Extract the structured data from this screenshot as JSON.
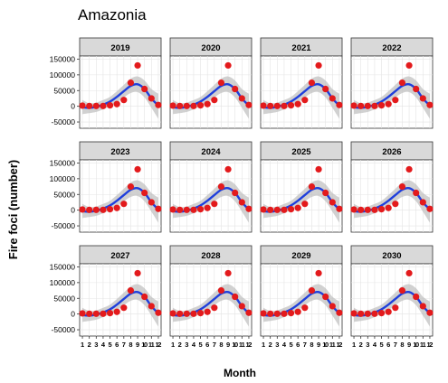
{
  "chart_data": {
    "type": "line",
    "title": "Amazonia",
    "xlabel": "Month",
    "ylabel": "Fire foci (number)",
    "x": [
      1,
      2,
      3,
      4,
      5,
      6,
      7,
      8,
      9,
      10,
      11,
      12
    ],
    "x_tick_labels": [
      "1",
      "2",
      "3",
      "4",
      "5",
      "6",
      "7",
      "8",
      "9",
      "10",
      "11",
      "12"
    ],
    "ylim": [
      -70000,
      160000
    ],
    "y_ticks": [
      150000,
      100000,
      50000,
      0,
      -50000
    ],
    "y_tick_labels": [
      "150000",
      "100000",
      "50000",
      "0",
      "-50000"
    ],
    "grid": true,
    "legend": "none",
    "facets": [
      "2019",
      "2020",
      "2021",
      "2022",
      "2023",
      "2024",
      "2025",
      "2026",
      "2027",
      "2028",
      "2029",
      "2030"
    ],
    "facet_layout": {
      "rows": 3,
      "cols": 4
    },
    "series": [
      {
        "kind": "observed-points",
        "color": "#e31a1c",
        "values": [
          2000,
          1000,
          1000,
          1000,
          3000,
          7000,
          20000,
          75000,
          130000,
          55000,
          25000,
          4000
        ]
      },
      {
        "kind": "fitted-curve",
        "color": "#1f3fdc",
        "values": [
          -3000,
          -5000,
          -2000,
          5000,
          15000,
          30000,
          48000,
          65000,
          70000,
          55000,
          25000,
          2000
        ]
      },
      {
        "kind": "confidence-band",
        "color": "#bdbdbd",
        "lower": [
          -25000,
          -22000,
          -18000,
          -10000,
          0,
          12000,
          28000,
          42000,
          45000,
          28000,
          -5000,
          -40000
        ],
        "upper": [
          20000,
          10000,
          12000,
          20000,
          30000,
          48000,
          68000,
          88000,
          95000,
          82000,
          55000,
          40000
        ]
      }
    ]
  }
}
